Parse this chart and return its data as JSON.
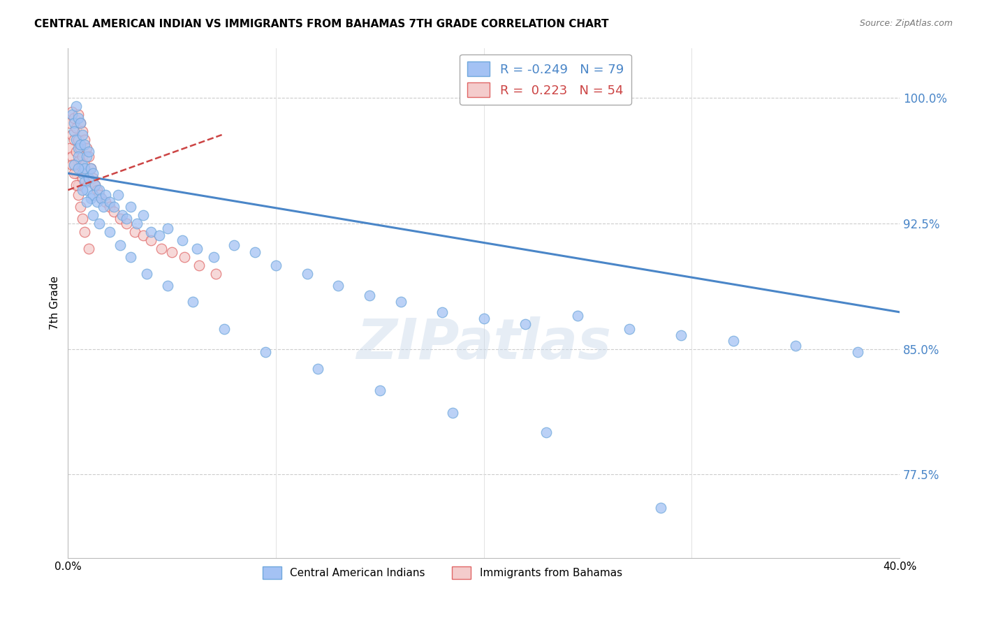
{
  "title": "CENTRAL AMERICAN INDIAN VS IMMIGRANTS FROM BAHAMAS 7TH GRADE CORRELATION CHART",
  "source": "Source: ZipAtlas.com",
  "ylabel": "7th Grade",
  "yticks": [
    0.775,
    0.85,
    0.925,
    1.0
  ],
  "ytick_labels": [
    "77.5%",
    "85.0%",
    "92.5%",
    "100.0%"
  ],
  "xlim": [
    0.0,
    0.4
  ],
  "ylim": [
    0.725,
    1.03
  ],
  "blue_R": -0.249,
  "blue_N": 79,
  "pink_R": 0.223,
  "pink_N": 54,
  "blue_color": "#a4c2f4",
  "pink_color": "#f4cccc",
  "blue_edge_color": "#6fa8dc",
  "pink_edge_color": "#e06666",
  "blue_line_color": "#4a86c8",
  "pink_line_color": "#cc4444",
  "watermark": "ZIPatlas",
  "legend_label_blue": "Central American Indians",
  "legend_label_pink": "Immigrants from Bahamas",
  "blue_line_x": [
    0.0,
    0.4
  ],
  "blue_line_y": [
    0.955,
    0.872
  ],
  "pink_line_x": [
    0.0,
    0.074
  ],
  "pink_line_y": [
    0.945,
    0.978
  ],
  "blue_x": [
    0.002,
    0.003,
    0.003,
    0.004,
    0.004,
    0.005,
    0.005,
    0.005,
    0.006,
    0.006,
    0.007,
    0.007,
    0.007,
    0.008,
    0.008,
    0.008,
    0.009,
    0.009,
    0.01,
    0.01,
    0.011,
    0.011,
    0.012,
    0.012,
    0.013,
    0.014,
    0.015,
    0.016,
    0.017,
    0.018,
    0.02,
    0.022,
    0.024,
    0.026,
    0.028,
    0.03,
    0.033,
    0.036,
    0.04,
    0.044,
    0.048,
    0.055,
    0.062,
    0.07,
    0.08,
    0.09,
    0.1,
    0.115,
    0.13,
    0.145,
    0.16,
    0.18,
    0.2,
    0.22,
    0.245,
    0.27,
    0.295,
    0.32,
    0.35,
    0.38,
    0.003,
    0.005,
    0.007,
    0.009,
    0.012,
    0.015,
    0.02,
    0.025,
    0.03,
    0.038,
    0.048,
    0.06,
    0.075,
    0.095,
    0.12,
    0.15,
    0.185,
    0.23,
    0.285
  ],
  "blue_y": [
    0.99,
    0.985,
    0.98,
    0.995,
    0.975,
    0.988,
    0.97,
    0.965,
    0.985,
    0.972,
    0.978,
    0.96,
    0.955,
    0.972,
    0.958,
    0.95,
    0.965,
    0.945,
    0.968,
    0.952,
    0.958,
    0.94,
    0.955,
    0.942,
    0.948,
    0.938,
    0.945,
    0.94,
    0.935,
    0.942,
    0.938,
    0.935,
    0.942,
    0.93,
    0.928,
    0.935,
    0.925,
    0.93,
    0.92,
    0.918,
    0.922,
    0.915,
    0.91,
    0.905,
    0.912,
    0.908,
    0.9,
    0.895,
    0.888,
    0.882,
    0.878,
    0.872,
    0.868,
    0.865,
    0.87,
    0.862,
    0.858,
    0.855,
    0.852,
    0.848,
    0.96,
    0.958,
    0.945,
    0.938,
    0.93,
    0.925,
    0.92,
    0.912,
    0.905,
    0.895,
    0.888,
    0.878,
    0.862,
    0.848,
    0.838,
    0.825,
    0.812,
    0.8,
    0.755
  ],
  "pink_x": [
    0.001,
    0.001,
    0.002,
    0.002,
    0.002,
    0.003,
    0.003,
    0.003,
    0.004,
    0.004,
    0.004,
    0.005,
    0.005,
    0.005,
    0.005,
    0.006,
    0.006,
    0.006,
    0.007,
    0.007,
    0.007,
    0.008,
    0.008,
    0.009,
    0.009,
    0.01,
    0.01,
    0.011,
    0.012,
    0.013,
    0.014,
    0.015,
    0.016,
    0.018,
    0.02,
    0.022,
    0.025,
    0.028,
    0.032,
    0.036,
    0.04,
    0.045,
    0.05,
    0.056,
    0.063,
    0.071,
    0.002,
    0.003,
    0.004,
    0.005,
    0.006,
    0.007,
    0.008,
    0.01
  ],
  "pink_y": [
    0.985,
    0.97,
    0.992,
    0.978,
    0.965,
    0.988,
    0.975,
    0.96,
    0.982,
    0.968,
    0.955,
    0.99,
    0.975,
    0.962,
    0.948,
    0.985,
    0.97,
    0.958,
    0.98,
    0.965,
    0.952,
    0.975,
    0.96,
    0.97,
    0.955,
    0.965,
    0.95,
    0.958,
    0.952,
    0.948,
    0.945,
    0.942,
    0.94,
    0.938,
    0.935,
    0.932,
    0.928,
    0.925,
    0.92,
    0.918,
    0.915,
    0.91,
    0.908,
    0.905,
    0.9,
    0.895,
    0.96,
    0.955,
    0.948,
    0.942,
    0.935,
    0.928,
    0.92,
    0.91
  ]
}
